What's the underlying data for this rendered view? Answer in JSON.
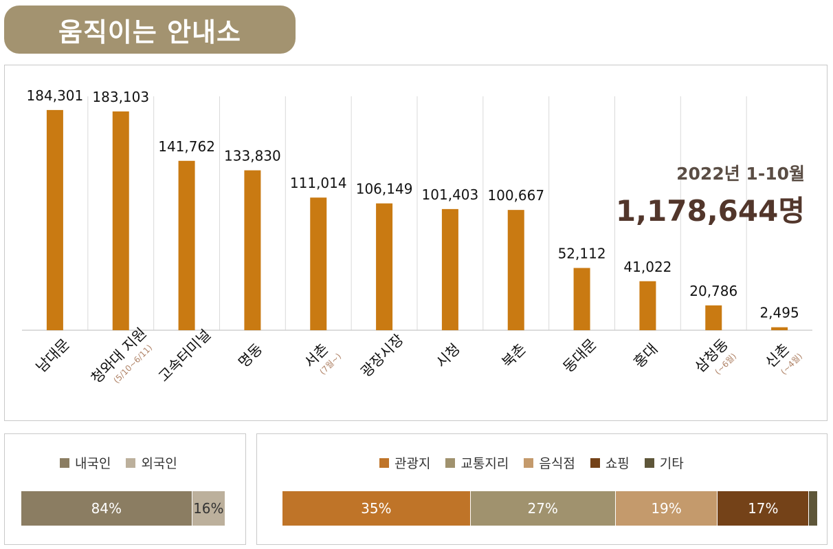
{
  "header": {
    "title": "움직이는 안내소"
  },
  "summary": {
    "period": "2022년 1-10월",
    "total": "1,178,644명"
  },
  "chart_data": [
    {
      "type": "bar",
      "categories": [
        "남대문",
        "청와대 지원",
        "고속터미널",
        "명동",
        "서촌",
        "광장시장",
        "시청",
        "북촌",
        "동대문",
        "홍대",
        "삼청동",
        "신촌"
      ],
      "category_notes": [
        "",
        "(5/10~6/11)",
        "",
        "",
        "(7월~)",
        "",
        "",
        "",
        "",
        "",
        "(~6월)",
        "(~4월)"
      ],
      "values": [
        184301,
        183103,
        141762,
        133830,
        111014,
        106149,
        101403,
        100667,
        52112,
        41022,
        20786,
        2495
      ],
      "value_labels": [
        "184,301",
        "183,103",
        "141,762",
        "133,830",
        "111,014",
        "106,149",
        "101,403",
        "100,667",
        "52,112",
        "41,022",
        "20,786",
        "2,495"
      ],
      "ylim": [
        0,
        190000
      ],
      "bar_color": "#c97a12",
      "grid": "vertical separators"
    },
    {
      "type": "bar",
      "stacked": true,
      "orientation": "horizontal",
      "series": [
        {
          "name": "내국인",
          "value": 84,
          "label": "84%",
          "color": "#8b7d62",
          "text_color": "#ffffff"
        },
        {
          "name": "외국인",
          "value": 16,
          "label": "16%",
          "color": "#bcb09c",
          "text_color": "#333333"
        }
      ],
      "legend": "top-center"
    },
    {
      "type": "bar",
      "stacked": true,
      "orientation": "horizontal",
      "series": [
        {
          "name": "관광지",
          "value": 35,
          "label": "35%",
          "color": "#bf7428",
          "text_color": "#ffffff"
        },
        {
          "name": "교통지리",
          "value": 27,
          "label": "27%",
          "color": "#a0926e",
          "text_color": "#ffffff"
        },
        {
          "name": "음식점",
          "value": 19,
          "label": "19%",
          "color": "#c49a6c",
          "text_color": "#ffffff"
        },
        {
          "name": "쇼핑",
          "value": 17,
          "label": "17%",
          "color": "#744218",
          "text_color": "#ffffff"
        },
        {
          "name": "기타",
          "value": 1.5,
          "label": "",
          "color": "#5e5639",
          "text_color": "#ffffff"
        }
      ],
      "legend": "top-center"
    }
  ]
}
